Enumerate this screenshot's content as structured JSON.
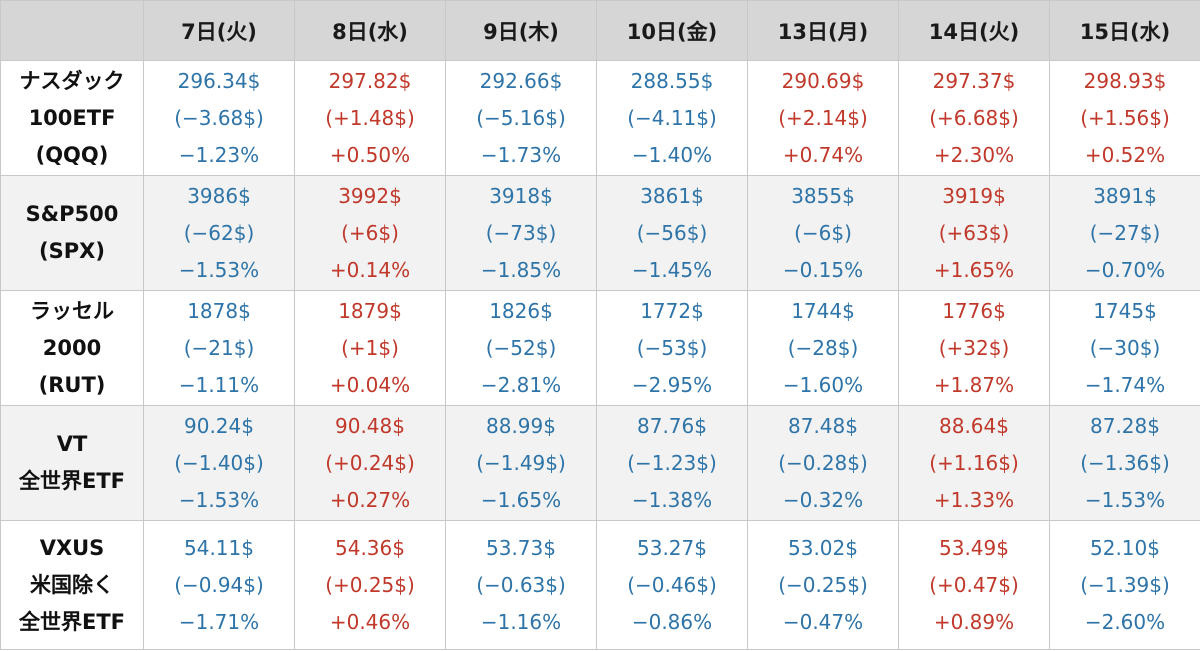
{
  "colors": {
    "up": "#c0392b",
    "down": "#2e74a8",
    "header_bg": "#d6d6d6"
  },
  "header": [
    "7日(火)",
    "8日(水)",
    "9日(木)",
    "10日(金)",
    "13日(月)",
    "14日(火)",
    "15日(水)"
  ],
  "rows": [
    {
      "label": [
        "ナスダック",
        "100ETF",
        "(QQQ)"
      ],
      "cells": [
        {
          "trend": "down",
          "price": "296.34$",
          "change": "(−3.68$)",
          "pct": "−1.23%"
        },
        {
          "trend": "up",
          "price": "297.82$",
          "change": "(+1.48$)",
          "pct": "+0.50%"
        },
        {
          "trend": "down",
          "price": "292.66$",
          "change": "(−5.16$)",
          "pct": "−1.73%"
        },
        {
          "trend": "down",
          "price": "288.55$",
          "change": "(−4.11$)",
          "pct": "−1.40%"
        },
        {
          "trend": "up",
          "price": "290.69$",
          "change": "(+2.14$)",
          "pct": "+0.74%"
        },
        {
          "trend": "up",
          "price": "297.37$",
          "change": "(+6.68$)",
          "pct": "+2.30%"
        },
        {
          "trend": "up",
          "price": "298.93$",
          "change": "(+1.56$)",
          "pct": "+0.52%"
        }
      ]
    },
    {
      "label": [
        "S&P500",
        "(SPX)"
      ],
      "cells": [
        {
          "trend": "down",
          "price": "3986$",
          "change": "(−62$)",
          "pct": "−1.53%"
        },
        {
          "trend": "up",
          "price": "3992$",
          "change": "(+6$)",
          "pct": "+0.14%"
        },
        {
          "trend": "down",
          "price": "3918$",
          "change": "(−73$)",
          "pct": "−1.85%"
        },
        {
          "trend": "down",
          "price": "3861$",
          "change": "(−56$)",
          "pct": "−1.45%"
        },
        {
          "trend": "down",
          "price": "3855$",
          "change": "(−6$)",
          "pct": "−0.15%"
        },
        {
          "trend": "up",
          "price": "3919$",
          "change": "(+63$)",
          "pct": "+1.65%"
        },
        {
          "trend": "down",
          "price": "3891$",
          "change": "(−27$)",
          "pct": "−0.70%"
        }
      ]
    },
    {
      "label": [
        "ラッセル",
        "2000",
        "(RUT)"
      ],
      "cells": [
        {
          "trend": "down",
          "price": "1878$",
          "change": "(−21$)",
          "pct": "−1.11%"
        },
        {
          "trend": "up",
          "price": "1879$",
          "change": "(+1$)",
          "pct": "+0.04%"
        },
        {
          "trend": "down",
          "price": "1826$",
          "change": "(−52$)",
          "pct": "−2.81%"
        },
        {
          "trend": "down",
          "price": "1772$",
          "change": "(−53$)",
          "pct": "−2.95%"
        },
        {
          "trend": "down",
          "price": "1744$",
          "change": "(−28$)",
          "pct": "−1.60%"
        },
        {
          "trend": "up",
          "price": "1776$",
          "change": "(+32$)",
          "pct": "+1.87%"
        },
        {
          "trend": "down",
          "price": "1745$",
          "change": "(−30$)",
          "pct": "−1.74%"
        }
      ]
    },
    {
      "label": [
        "VT",
        "全世界ETF"
      ],
      "cells": [
        {
          "trend": "down",
          "price": "90.24$",
          "change": "(−1.40$)",
          "pct": "−1.53%"
        },
        {
          "trend": "up",
          "price": "90.48$",
          "change": "(+0.24$)",
          "pct": "+0.27%"
        },
        {
          "trend": "down",
          "price": "88.99$",
          "change": "(−1.49$)",
          "pct": "−1.65%"
        },
        {
          "trend": "down",
          "price": "87.76$",
          "change": "(−1.23$)",
          "pct": "−1.38%"
        },
        {
          "trend": "down",
          "price": "87.48$",
          "change": "(−0.28$)",
          "pct": "−0.32%"
        },
        {
          "trend": "up",
          "price": "88.64$",
          "change": "(+1.16$)",
          "pct": "+1.33%"
        },
        {
          "trend": "down",
          "price": "87.28$",
          "change": "(−1.36$)",
          "pct": "−1.53%"
        }
      ]
    },
    {
      "label": [
        "VXUS",
        "米国除く",
        "全世界ETF"
      ],
      "cells": [
        {
          "trend": "down",
          "price": "54.11$",
          "change": "(−0.94$)",
          "pct": "−1.71%"
        },
        {
          "trend": "up",
          "price": "54.36$",
          "change": "(+0.25$)",
          "pct": "+0.46%"
        },
        {
          "trend": "down",
          "price": "53.73$",
          "change": "(−0.63$)",
          "pct": "−1.16%"
        },
        {
          "trend": "down",
          "price": "53.27$",
          "change": "(−0.46$)",
          "pct": "−0.86%"
        },
        {
          "trend": "down",
          "price": "53.02$",
          "change": "(−0.25$)",
          "pct": "−0.47%"
        },
        {
          "trend": "up",
          "price": "53.49$",
          "change": "(+0.47$)",
          "pct": "+0.89%"
        },
        {
          "trend": "down",
          "price": "52.10$",
          "change": "(−1.39$)",
          "pct": "−2.60%"
        }
      ]
    }
  ]
}
